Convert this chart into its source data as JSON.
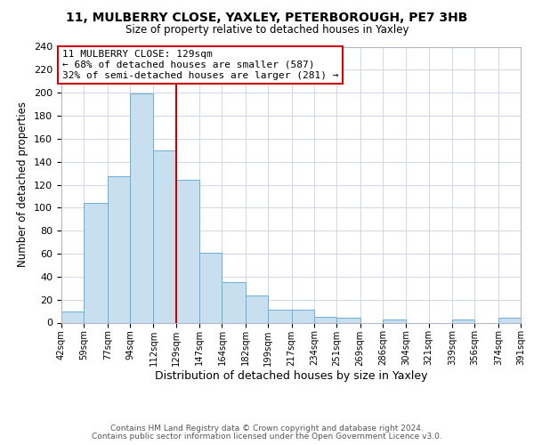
{
  "title": "11, MULBERRY CLOSE, YAXLEY, PETERBOROUGH, PE7 3HB",
  "subtitle": "Size of property relative to detached houses in Yaxley",
  "xlabel": "Distribution of detached houses by size in Yaxley",
  "ylabel": "Number of detached properties",
  "bin_edges": [
    42,
    59,
    77,
    94,
    112,
    129,
    147,
    164,
    182,
    199,
    217,
    234,
    251,
    269,
    286,
    304,
    321,
    339,
    356,
    374,
    391
  ],
  "bin_labels": [
    "42sqm",
    "59sqm",
    "77sqm",
    "94sqm",
    "112sqm",
    "129sqm",
    "147sqm",
    "164sqm",
    "182sqm",
    "199sqm",
    "217sqm",
    "234sqm",
    "251sqm",
    "269sqm",
    "286sqm",
    "304sqm",
    "321sqm",
    "339sqm",
    "356sqm",
    "374sqm",
    "391sqm"
  ],
  "counts": [
    10,
    104,
    127,
    199,
    150,
    124,
    61,
    35,
    24,
    11,
    11,
    5,
    4,
    0,
    3,
    0,
    0,
    3,
    0,
    4
  ],
  "bar_color": "#c8dff0",
  "bar_edge_color": "#6aafd6",
  "vline_x": 129,
  "vline_color": "#cc0000",
  "annotation_title": "11 MULBERRY CLOSE: 129sqm",
  "annotation_line1": "← 68% of detached houses are smaller (587)",
  "annotation_line2": "32% of semi-detached houses are larger (281) →",
  "annotation_box_color": "#ffffff",
  "annotation_box_edge_color": "#cc0000",
  "ylim": [
    0,
    240
  ],
  "yticks": [
    0,
    20,
    40,
    60,
    80,
    100,
    120,
    140,
    160,
    180,
    200,
    220,
    240
  ],
  "footer1": "Contains HM Land Registry data © Crown copyright and database right 2024.",
  "footer2": "Contains public sector information licensed under the Open Government Licence v3.0.",
  "background_color": "#ffffff",
  "grid_color": "#d0d8e8"
}
